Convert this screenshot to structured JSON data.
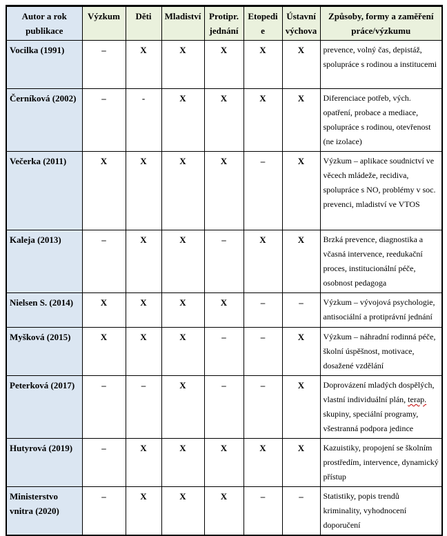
{
  "colors": {
    "author_column_bg": "#dbe6f2",
    "header_bg": "#eaf1dd",
    "border": "#000000",
    "spellcheck_underline": "#c00000",
    "text": "#000000"
  },
  "table": {
    "columns": [
      "Autor a rok publikace",
      "Výzkum",
      "Děti",
      "Mladiství",
      "Protipr. jednání",
      "Etopedie",
      "Ústavní výchova",
      "Způsoby, formy a zaměření práce/výzkumu"
    ],
    "rows": [
      {
        "author": "Vocilka (1991)",
        "marks": [
          "–",
          "X",
          "X",
          "X",
          "X",
          "X"
        ],
        "description": "prevence, volný čas, depistáž, spolupráce s rodinou a institucemi"
      },
      {
        "author": "Černíková (2002)",
        "marks": [
          "–",
          "-",
          "X",
          "X",
          "X",
          "X"
        ],
        "description": "Diferenciace potřeb, vých. opatření, probace a mediace, spolupráce s rodinou, otevřenost (ne izolace)"
      },
      {
        "author": "Večerka (2011)",
        "marks": [
          "X",
          "X",
          "X",
          "X",
          "–",
          "X"
        ],
        "description": "Výzkum – aplikace soudnictví ve věcech mládeže, recidiva, spolupráce s NO, problémy v soc. prevenci, mladiství ve VTOS"
      },
      {
        "author": "Kaleja (2013)",
        "marks": [
          "–",
          "X",
          "X",
          "–",
          "X",
          "X"
        ],
        "description": "Brzká prevence, diagnostika a včasná intervence, reedukační proces, institucionální péče, osobnost pedagoga"
      },
      {
        "author": "Nielsen S. (2014)",
        "marks": [
          "X",
          "X",
          "X",
          "X",
          "–",
          "–"
        ],
        "description": "Výzkum – vývojová psychologie, antisociální a protiprávní jednání"
      },
      {
        "author": "Myšková (2015)",
        "marks": [
          "X",
          "X",
          "X",
          "–",
          "–",
          "X"
        ],
        "description": "Výzkum – náhradní rodinná péče, školní úspěšnost, motivace, dosažené vzdělání"
      },
      {
        "author": "Peterková (2017)",
        "marks": [
          "–",
          "–",
          "X",
          "–",
          "–",
          "X"
        ],
        "description": "Doprovázení mladých dospělých, vlastní individuální plán, terap. skupiny, speciální programy, všestranná podpora jedince",
        "squiggle": "terap."
      },
      {
        "author": "Hutyrová (2019)",
        "marks": [
          "–",
          "X",
          "X",
          "X",
          "X",
          "X"
        ],
        "description": "Kazuistiky, propojení se školním prostředím, intervence, dynamický přístup"
      },
      {
        "author": "Ministerstvo vnitra (2020)",
        "marks": [
          "–",
          "X",
          "X",
          "X",
          "–",
          "–"
        ],
        "description": "Statistiky, popis trendů kriminality, vyhodnocení doporučení"
      }
    ]
  }
}
